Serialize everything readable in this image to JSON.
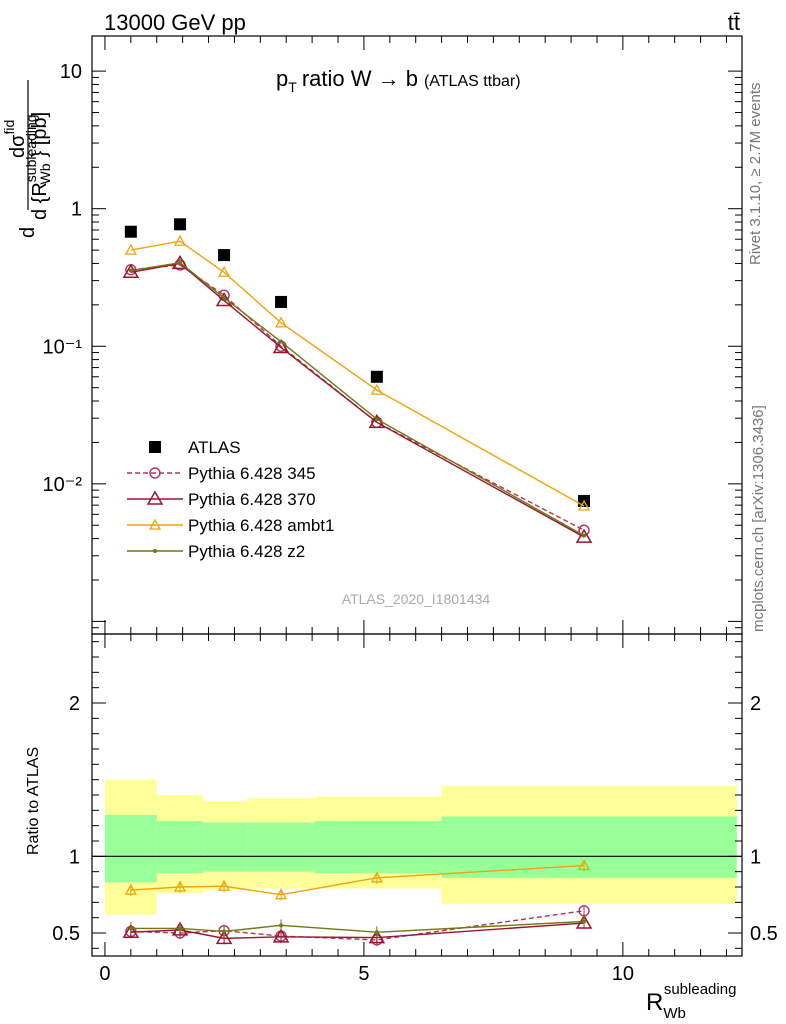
{
  "header": {
    "left": "13000 GeV pp",
    "right": "tt̄"
  },
  "side_texts": {
    "rivet": "Rivet 3.1.10, ≥ 2.7M events",
    "mcplots": "mcplots.cern.ch [arXiv:1306.3436]"
  },
  "watermark": "ATLAS_2020_I1801434",
  "chart_data": [
    {
      "type": "line",
      "title": "p_T ratio W → b (ATLAS ttbar)",
      "title_parts": {
        "p": "p",
        "sub_T": "T",
        "main": "ratio W → b",
        "note": "(ATLAS ttbar)"
      },
      "ylabel": "dσ/d{R_Wb^subleading} [pb]",
      "ylabel_parts": {
        "num": "dσ",
        "num_sup": "fid",
        "den": "d {R",
        "den_sub": "Wb",
        "den_sup": "subleading",
        "unit": "} [pb]"
      },
      "yscale": "log",
      "ylim": [
        0.00081,
        18
      ],
      "xlim": [
        -0.25,
        12.3
      ],
      "y_tick_labels": [
        "10⁻²",
        "10⁻¹",
        "1",
        "10"
      ],
      "legend_position": "lower-left",
      "series": [
        {
          "name": "ATLAS",
          "style": "data",
          "color": "#000000",
          "x": [
            0.5,
            1.45,
            2.3,
            3.4,
            5.25,
            9.25
          ],
          "y": [
            0.68,
            0.77,
            0.46,
            0.21,
            0.06,
            0.0075
          ]
        },
        {
          "name": "Pythia 6.428 345",
          "style": "circle-dashed",
          "color": "#b0365a",
          "x": [
            0.5,
            1.45,
            2.3,
            3.4,
            5.25,
            9.25
          ],
          "y": [
            0.36,
            0.39,
            0.235,
            0.1,
            0.028,
            0.0046
          ]
        },
        {
          "name": "Pythia 6.428 370",
          "style": "triangle",
          "color": "#9a1430",
          "x": [
            0.5,
            1.45,
            2.3,
            3.4,
            5.25,
            9.25
          ],
          "y": [
            0.345,
            0.4,
            0.215,
            0.098,
            0.028,
            0.0041
          ]
        },
        {
          "name": "Pythia 6.428 ambt1",
          "style": "triangle-small",
          "color": "#f0a30a",
          "x": [
            0.5,
            1.45,
            2.3,
            3.4,
            5.25,
            9.25
          ],
          "y": [
            0.5,
            0.58,
            0.345,
            0.148,
            0.048,
            0.0069
          ]
        },
        {
          "name": "Pythia 6.428 z2",
          "style": "dot",
          "color": "#6e7a10",
          "x": [
            0.5,
            1.45,
            2.3,
            3.4,
            5.25,
            9.25
          ],
          "y": [
            0.355,
            0.405,
            0.225,
            0.108,
            0.0295,
            0.0042
          ]
        }
      ]
    },
    {
      "type": "line",
      "ylabel": "Ratio to ATLAS",
      "xlabel": "R_Wb^subleading",
      "xlabel_parts": {
        "main": "R",
        "sub": "Wb",
        "sup": "subleading"
      },
      "ylim": [
        0.35,
        2.45
      ],
      "xlim": [
        -0.25,
        12.3
      ],
      "y_ticks": [
        0.5,
        1,
        2
      ],
      "y_tick_labels": [
        "0.5",
        "1",
        "2"
      ],
      "x_ticks": [
        0,
        5,
        10
      ],
      "x_tick_labels": [
        "0",
        "5",
        "10"
      ],
      "bins": [
        0,
        1,
        1.9,
        2.75,
        4.05,
        6.5,
        12.2
      ],
      "band_inner": {
        "color": "#99ff99",
        "lo": [
          0.83,
          0.89,
          0.9,
          0.9,
          0.89,
          0.86
        ],
        "hi": [
          1.27,
          1.23,
          1.22,
          1.22,
          1.23,
          1.26
        ]
      },
      "band_outer": {
        "color": "#ffff99",
        "lo": [
          0.62,
          0.76,
          0.78,
          0.79,
          0.79,
          0.69
        ],
        "hi": [
          1.5,
          1.4,
          1.36,
          1.38,
          1.39,
          1.46
        ]
      },
      "reference_line": 1,
      "series": [
        {
          "name": "Pythia 6.428 345",
          "style": "circle-dashed",
          "color": "#b0365a",
          "x": [
            0.5,
            1.45,
            2.3,
            3.4,
            5.25,
            9.25
          ],
          "y": [
            0.51,
            0.5,
            0.515,
            0.48,
            0.455,
            0.645
          ]
        },
        {
          "name": "Pythia 6.428 370",
          "style": "triangle",
          "color": "#9a1430",
          "x": [
            0.5,
            1.45,
            2.3,
            3.4,
            5.25,
            9.25
          ],
          "y": [
            0.505,
            0.52,
            0.465,
            0.475,
            0.47,
            0.565
          ]
        },
        {
          "name": "Pythia 6.428 ambt1",
          "style": "triangle-small",
          "color": "#f0a30a",
          "x": [
            0.5,
            1.45,
            2.3,
            3.4,
            5.25,
            9.25
          ],
          "y": [
            0.78,
            0.8,
            0.805,
            0.75,
            0.86,
            0.94
          ]
        },
        {
          "name": "Pythia 6.428 z2",
          "style": "dot",
          "color": "#6e7a10",
          "x": [
            0.5,
            1.45,
            2.3,
            3.4,
            5.25,
            9.25
          ],
          "y": [
            0.53,
            0.53,
            0.51,
            0.55,
            0.505,
            0.575
          ]
        }
      ]
    }
  ]
}
